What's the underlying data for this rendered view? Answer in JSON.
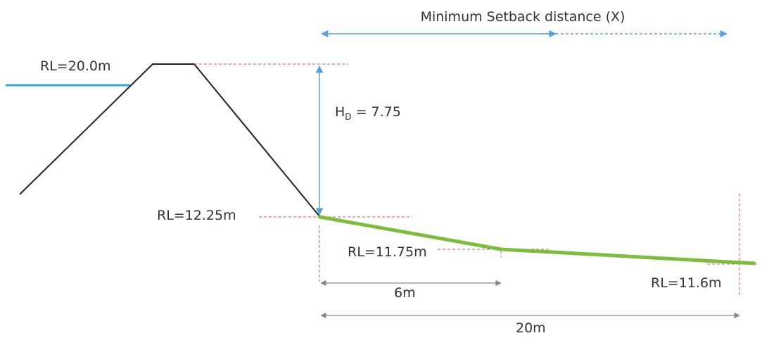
{
  "labels": {
    "title": "Minimum Setback distance (X)",
    "rl_crest": "RL=20.0m",
    "hd_main": "H",
    "hd_sub": "D",
    "hd_value": " = 7.75",
    "rl_toe": "RL=12.25m",
    "rl_mid": "RL=11.75m",
    "rl_end": "RL=11.6m",
    "dist_6": "6m",
    "dist_20": "20m"
  },
  "colors": {
    "embankment": "#222222",
    "water": "#29a8e0",
    "dimension": "#5aa0dc",
    "reference": "#e85050",
    "ground": "#7cbd3c",
    "measure": "#888888",
    "text": "#333333"
  }
}
